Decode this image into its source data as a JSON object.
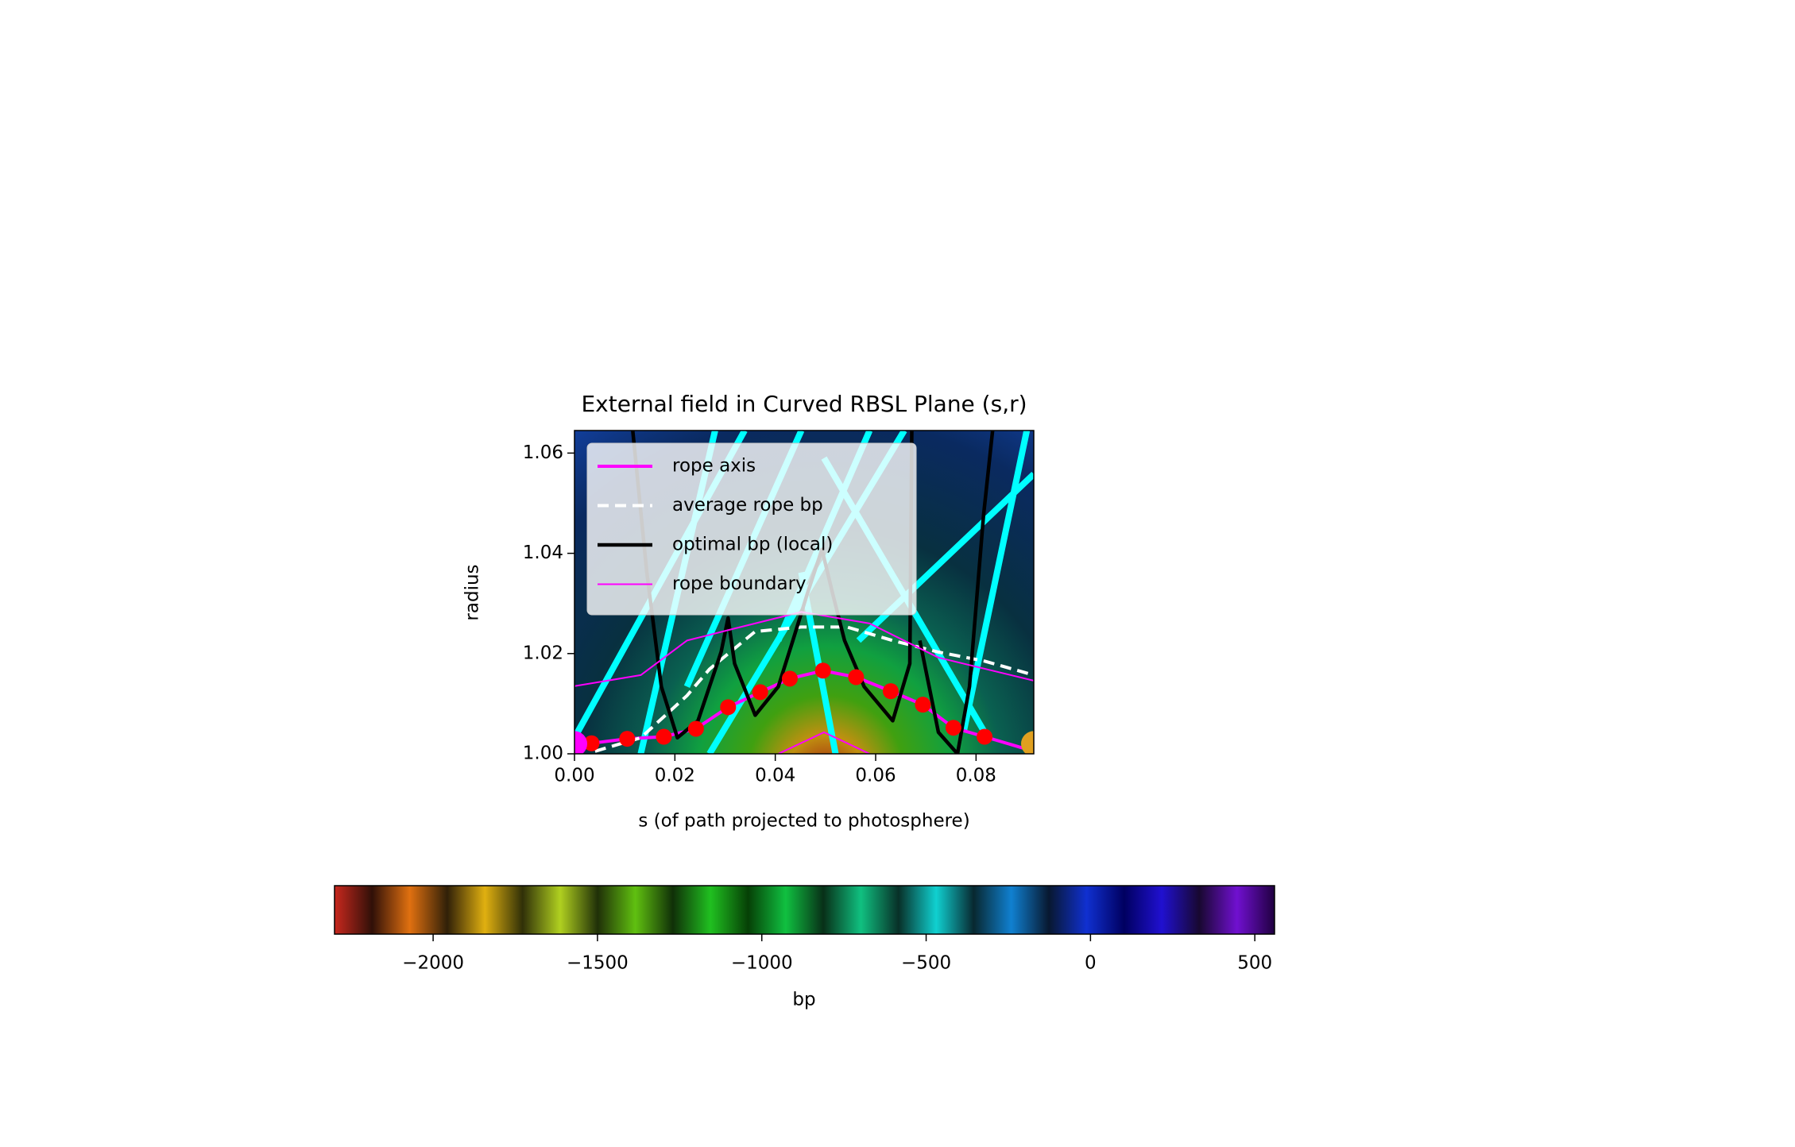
{
  "chart_data": {
    "type": "line",
    "title": "External field in Curved RBSL Plane (s,r)",
    "xlabel": "s (of path projected to photosphere)",
    "ylabel": "radius",
    "xlim": [
      0,
      0.0915
    ],
    "ylim": [
      1.0,
      1.0645
    ],
    "xticks": [
      {
        "value": 0,
        "label": "0.00"
      },
      {
        "value": 0.02,
        "label": "0.02"
      },
      {
        "value": 0.04,
        "label": "0.04"
      },
      {
        "value": 0.06,
        "label": "0.06"
      },
      {
        "value": 0.08,
        "label": "0.08"
      }
    ],
    "yticks": [
      {
        "value": 1.0,
        "label": "1.00"
      },
      {
        "value": 1.02,
        "label": "1.02"
      },
      {
        "value": 1.04,
        "label": "1.04"
      },
      {
        "value": 1.06,
        "label": "1.06"
      }
    ],
    "legend": "upper left",
    "series": [
      {
        "color": "#00ffff",
        "width": 8,
        "x": [
          0,
          0.0339,
          null,
          0.0132,
          0.028,
          null,
          0.0224,
          0.0452,
          null,
          0.0406,
          0.0588,
          null,
          0.0497,
          0.0817,
          null,
          0.0566,
          0.0915,
          null,
          0.0775,
          0.0901,
          null,
          0.0269,
          0.0657,
          null,
          0.052,
          0.0452
        ],
        "values": [
          1.0032,
          1.0645,
          null,
          1.0,
          1.0645,
          null,
          1.0134,
          1.0645,
          null,
          1.0226,
          1.0645,
          null,
          1.059,
          1.0043,
          null,
          1.0226,
          1.0558,
          null,
          1.0043,
          1.0645,
          null,
          1.0,
          1.0645,
          null,
          1.0,
          1.0362
        ]
      },
      {
        "name": "rope axis",
        "color": "#ff00ff",
        "width": 4,
        "x": [
          0,
          0.0034,
          0.0105,
          0.0178,
          0.0242,
          0.0306,
          0.037,
          0.0429,
          0.0495,
          0.0561,
          0.063,
          0.0694,
          0.0755,
          0.0817,
          0.0915
        ],
        "values": [
          1.001,
          1.0021,
          1.003,
          1.0034,
          1.005,
          1.0093,
          1.0123,
          1.015,
          1.0166,
          1.0153,
          1.0125,
          1.0098,
          1.0052,
          1.0034,
          1.0005
        ]
      },
      {
        "name": "average rope bp",
        "color": "#ffffff",
        "width": 4,
        "dash": true,
        "x": [
          0.0041,
          0.0132,
          0.0224,
          0.0269,
          0.036,
          0.0452,
          0.0543,
          0.0634,
          0.0725,
          0.0817,
          0.0915
        ],
        "values": [
          1.0005,
          1.0032,
          1.0116,
          1.0169,
          1.0244,
          1.0253,
          1.0253,
          1.0226,
          1.0203,
          1.0185,
          1.0157
        ]
      },
      {
        "name": "optimal bp (local)",
        "color": "#000000",
        "width": 4.5,
        "x": [
          0.0116,
          0.0144,
          0.0173,
          0.0205,
          0.0246,
          0.0292,
          0.0306,
          0.0319,
          0.036,
          0.0406,
          0.0435,
          0.0463,
          0.0493,
          0.0515,
          0.0538,
          0.0577,
          0.0634,
          0.0668,
          0.0672,
          null,
          0.0688,
          0.0725,
          0.0763,
          0.0787,
          0.0815,
          0.0833
        ],
        "values": [
          1.0645,
          1.0362,
          1.0134,
          1.0032,
          1.0066,
          1.0203,
          1.0271,
          1.018,
          1.0077,
          1.0134,
          1.0226,
          1.0317,
          1.0408,
          1.0317,
          1.0226,
          1.0134,
          1.0066,
          1.018,
          1.0645,
          null,
          1.0226,
          1.0043,
          1.0,
          1.0134,
          1.0476,
          1.0645
        ]
      },
      {
        "name": "rope boundary",
        "color": "#ff00ff",
        "width": 2,
        "x": [
          0,
          0.0132,
          0.0224,
          0.0315,
          0.0452,
          0.0588,
          0.0725,
          0.0915,
          null,
          0.0406,
          0.0497,
          0.0588
        ],
        "values": [
          1.0135,
          1.0157,
          1.0226,
          1.0249,
          1.0283,
          1.026,
          1.0192,
          1.0146,
          null,
          1.0,
          1.0043,
          1.0
        ]
      },
      {
        "color": "#ff0000",
        "marker": 10,
        "x": [
          0.0034,
          0.0105,
          0.0178,
          0.0242,
          0.0306,
          0.037,
          0.0429,
          0.0495,
          0.0561,
          0.063,
          0.0694,
          0.0755,
          0.0817
        ],
        "values": [
          1.0021,
          1.003,
          1.0034,
          1.005,
          1.0093,
          1.0123,
          1.015,
          1.0166,
          1.0153,
          1.0125,
          1.0098,
          1.0052,
          1.0034
        ]
      },
      {
        "colors": [
          "#ff00ff",
          "#e0a020"
        ],
        "marker": 16,
        "x": [
          0,
          0.0915
        ],
        "values": [
          1.002,
          1.002
        ]
      }
    ],
    "colorbar": {
      "label": "bp",
      "lim": [
        -2300,
        560
      ],
      "ticks": [
        {
          "value": -2000,
          "label": "−2000"
        },
        {
          "value": -1500,
          "label": "−1500"
        },
        {
          "value": -1000,
          "label": "−1000"
        },
        {
          "value": -500,
          "label": "−500"
        },
        0,
        500
      ],
      "colormap": [
        "#c8281e",
        "#301008",
        "#e07010",
        "#302008",
        "#e0b010",
        "#303008",
        "#b0d020",
        "#203008",
        "#60c010",
        "#103008",
        "#20c020",
        "#064006",
        "#10c040",
        "#083018",
        "#10c080",
        "#083028",
        "#10d0d0",
        "#082830",
        "#1080d0",
        "#081830",
        "#1030d0",
        "#000060",
        "#2010d0",
        "#180830",
        "#7010d0",
        "#200040"
      ]
    }
  }
}
